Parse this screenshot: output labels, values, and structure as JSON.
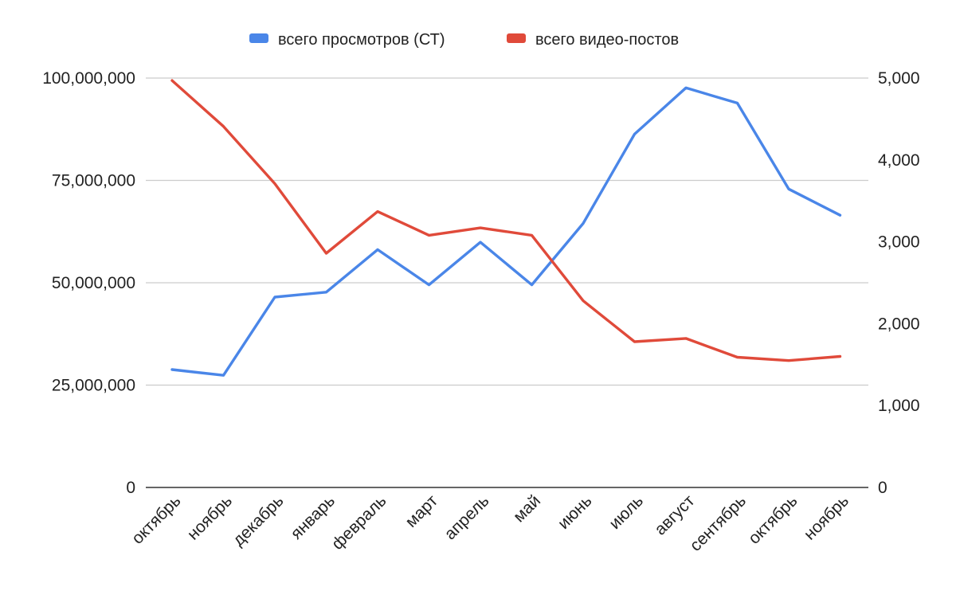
{
  "chart_data": {
    "type": "line",
    "categories": [
      "октябрь",
      "ноябрь",
      "декабрь",
      "январь",
      "февраль",
      "март",
      "апрель",
      "май",
      "июнь",
      "июль",
      "август",
      "сентябрь",
      "октябрь",
      "ноябрь"
    ],
    "series": [
      {
        "name": "всего просмотров (СТ)",
        "axis": "left",
        "color": "#4a86e8",
        "values": [
          28800000,
          27400000,
          46500000,
          47700000,
          58100000,
          49500000,
          59900000,
          49500000,
          64500000,
          86300000,
          97600000,
          93900000,
          72900000,
          66500000
        ]
      },
      {
        "name": "всего видео-постов",
        "axis": "right",
        "color": "#e04a3a",
        "values": [
          4970,
          4410,
          3710,
          2860,
          3370,
          3080,
          3170,
          3080,
          2280,
          1780,
          1820,
          1590,
          1550,
          1600
        ]
      }
    ],
    "y_left": {
      "min": 0,
      "max": 100000000,
      "ticks": [
        0,
        25000000,
        50000000,
        75000000,
        100000000
      ],
      "tick_labels": [
        "0",
        "25,000,000",
        "50,000,000",
        "75,000,000",
        "100,000,000"
      ]
    },
    "y_right": {
      "min": 0,
      "max": 5000,
      "ticks": [
        0,
        1000,
        2000,
        3000,
        4000,
        5000
      ],
      "tick_labels": [
        "0",
        "1,000",
        "2,000",
        "3,000",
        "4,000",
        "5,000"
      ]
    },
    "grid": true,
    "legend_position": "top-center",
    "title": "",
    "xlabel": "",
    "ylabel": ""
  }
}
